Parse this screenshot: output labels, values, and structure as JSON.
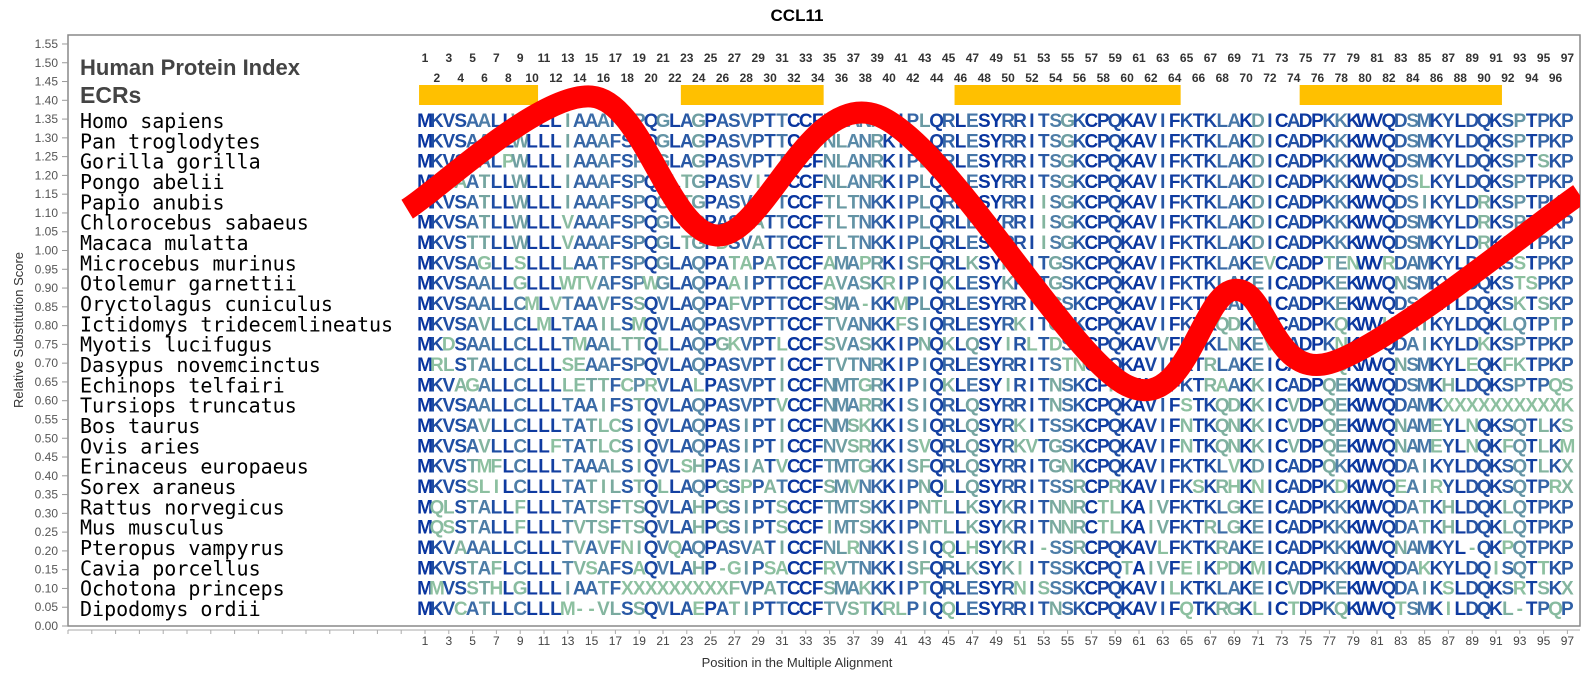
{
  "chart_data": {
    "type": "line",
    "title": "CCL11",
    "xlabel": "Position in the Multiple Alignment",
    "ylabel": "Relative Substitution Score",
    "ylim": [
      0,
      1.55
    ],
    "y_ticks": [
      "0.00",
      "0.05",
      "0.10",
      "0.15",
      "0.20",
      "0.25",
      "0.30",
      "0.35",
      "0.40",
      "0.45",
      "0.50",
      "0.55",
      "0.60",
      "0.65",
      "0.70",
      "0.75",
      "0.80",
      "0.85",
      "0.90",
      "0.95",
      "1.00",
      "1.05",
      "1.10",
      "1.15",
      "1.20",
      "1.25",
      "1.30",
      "1.35",
      "1.40",
      "1.45",
      "1.50",
      "1.55"
    ],
    "x_range": [
      1,
      97
    ],
    "x_tick_step": 2,
    "grid": false,
    "track_labels": {
      "index": "Human Protein Index",
      "ecrs": "ECRs"
    },
    "ecrs": [
      [
        1,
        10
      ],
      [
        23,
        34
      ],
      [
        46,
        64
      ],
      [
        75,
        91
      ]
    ],
    "series": [
      {
        "name": "Relative Substitution Score",
        "color": "#ff0000",
        "points": [
          [
            -0.5,
            1.11
          ],
          [
            15,
            1.41
          ],
          [
            25.5,
            1.04
          ],
          [
            39,
            1.36
          ],
          [
            60,
            0.64
          ],
          [
            69,
            0.895
          ],
          [
            77,
            0.7
          ],
          [
            98,
            1.15
          ]
        ]
      }
    ],
    "alignment": [
      {
        "species": "Homo sapiens",
        "seq": "MKVSAALLWLLLIAAAFSPQGLAGPASVPTTCCFNLANRKIPLQRLESYRRITSGKCPQKAVIFKTKLAKDICADPKKKWVQDSMKYLDQKSPTPKP"
      },
      {
        "species": "Pan troglodytes",
        "seq": "MKVSAALLWLLLIAAAFSPQGLAGPASVPTTCCFNLANRKIPLQRLESYRRITSGKCPQKAVIFKTKLAKDICADPKKKWVQDSMKYLDQKSPTPKP"
      },
      {
        "species": "Gorilla gorilla",
        "seq": "MKVSAALPWLLLIAAAFSPQGLAGPASVPTTCCFNLANRKIPLQRLESYRRITSGKCPQKAVIFKTKLAKDICADPKKKWVQDSMKYLDQKSPTSKP"
      },
      {
        "species": "Pongo abelii",
        "seq": "MKVAATLLWLLLIAAAFSPQGLTGPASVITTCCFNLANRKIPLQRLESYRRITSGKCPQKAVIFKTKLAKDICADPKKKWVQDSLKYLDQKSPTPKP"
      },
      {
        "species": "Papio anubis",
        "seq": "MKVSATLLWLLLIAAAFSPQGLTGPASVATTCCFTLTNKKIPLQRLESYRRIISGKCPQKAVIFKTKLAKDICADPKKKWVQDSIKYLDRKSPTPKP"
      },
      {
        "species": "Chlorocebus sabaeus",
        "seq": "MKVSATLLWLLLVAAAFSPQGLTGPASVATTCCFTLTNKKIPLQRLESYRRIISGKCPQKAVIFKTKLAKDICADPKKKWVQDSMKYLDRKSPTPKP"
      },
      {
        "species": "Macaca mulatta",
        "seq": "MKVSTTLLWLLLVAAAFSPQGLTGPDSVATTCCFTLTNKKIPLQRLESYRRIISGKCPQKAVIFKTKLAKDICADPKKKWVQDSMKYLDRKSPTPKP"
      },
      {
        "species": "Microcebus murinus",
        "seq": "MKVSAGLLSLLLLAATFSPQGLAQPATAPATCCFAMAPRKISFQRLKSYKRITGSKCPQKAVIFKTKLAKEVCADPTENWVRDAMKYLDQKSSTPKP"
      },
      {
        "species": "Otolemur garnettii",
        "seq": "MKVSAALLGLLLWTVAFSPWGLAQPAAIPTTCCFAVASKRIPIQKLESYKRVTGSKCPQKAVIFKTKLAKEICADPKEKWVQNSMKYLDQKSTSPKP"
      },
      {
        "species": "Oryctolagus cuniculus",
        "seq": "MKVSAALLCMLVTAAVFSSQVLAQPAFVPTTCCFSMA-KKMPLQRLESYRRISGSKCPQKAVIFKTKLAKEICADPKEKWVQDSIKYLDQKSKTSKP"
      },
      {
        "species": "Ictidomys tridecemlineatus",
        "seq": "MKVSAVLLCLMLTAAILSMQVLAQPASVPTTCCFTVANKKFSIQRLESYRKITGSKCPQKAVIFKTKQDKEFCADPKQKWVKDAIKYLDQKLQTPTP"
      },
      {
        "species": "Myotis lucifugus",
        "seq": "MKDSAALLCLLLTMAALTTQLLAQPGKVPTLCCFSVASKKIPNQKLQSYIRLTDSRCPQKAVVFKTKLNKEVCADPKNKWVQDAIKYLDKKSPTPKP"
      },
      {
        "species": "Dasypus novemcinctus",
        "seq": "MRLSTALLCLLLSEAAFSPQVLAQPASVPTICCFTVTNRKIPIQRLESYRRITSTNCPQKAVIFKTRLAKEICANPEQKWVQNSMKYLEQKFKTPKP"
      },
      {
        "species": "Echinops telfairi",
        "seq": "MKVAGALLCLLLLETTFCPRVLALPASVPTICCFNMTGRKIPIQKLESYIRITNSKCPRTAVVFKTRAAKKICADPQEKWVQDSMKHLDQKSPTPQS"
      },
      {
        "species": "Tursiops truncatus",
        "seq": "MKVSAALLCLLLTAAIFSTQVLAQPASVPTVCCFNMARRKISIQRLQSYRRITNSKCPQKAVIFSTKQDKKICVDPQEKWVQDAMKXXXXXXXXXXK"
      },
      {
        "species": "Bos taurus",
        "seq": "MKVSAVLLCLLLTATLCSIQVLAQPASIPTICCFNMSKKKISIQRLQSYRKITSSKCPQKAVIFNTKQNKKICVDPQEKWVQNAMEYLNQKSQTLKS"
      },
      {
        "species": "Ovis aries",
        "seq": "MKVSAVLLCLLFTATLCSIQVLAQPASIPTICCFNVSRKKISVQRLQSYRKVTGSKCPQKAVIFNTKQNKKICVDPQEKWVQNAMEYLNQKFQTLKM"
      },
      {
        "species": "Erinaceus europaeus",
        "seq": "MKVSTMFLCLLLTAAALSIQVLSHPASIATVCCFTMTGKKISFQRLQSYRRITGNKCPQKAVIFKTKLVKDICADPQKKWVQDAIKYLDQKSQTLKX"
      },
      {
        "species": "Sorex araneus",
        "seq": "MKVSSLILCLLLTATILSTQLLAQPGSPPATCCFSMVNKKIPNQLLQSYRRITSSRCPRKAVIFKSKRHKNICADPKDKWVQEAIRYLDQKSQTPRX"
      },
      {
        "species": "Rattus norvegicus",
        "seq": "MQLSTALLFLLLTATSFTSQVLAHPGSIPTSCCFTMTSKKIPNTLLKSYKRITNNRCTLKAIVFKTKLGKEICADPKKKWVQDATKHLDQKLQTPKP"
      },
      {
        "species": "Mus musculus",
        "seq": "MQSSTALLFLLLTVTSFTSQVLAHPGSIPTSCCFIMTSKKIPNTLLKSYKRITNNRCTLKAIVFKTRLGKEICADPKKKWVQDATKHLDQKLQTPKP"
      },
      {
        "species": "Pteropus vampyrus",
        "seq": "MKVAAALLCLLLTVAVFNIQVQAQPASVATICCFNLRNKKISIQQLHSYKRI-SSRCPQKAVLFKTKRAKEICADPKKKWVQNAMKYL-QKPQTPKP"
      },
      {
        "species": "Cavia porcellus",
        "seq": "MKVSTAFLCLLLTVSAFSAQVLAHP-GIPSACCFRVTNKKISFQRLKSYKIITSSKCPQTAIVFEIKPDKMICADPKKKWVQDAKKYLDQISQTTKP"
      },
      {
        "species": "Ochotona princeps",
        "seq": "MMVSSTHLGLLLIAATFXXXXXXXXXFVPATCCFSMAKKKIPTQRLESYRNISSSKCPQKAVILKTKLAKEICVDPKEKWVQDAIKSLDQKSRTSKX"
      },
      {
        "species": "Dipodomys ordii",
        "seq": "MKVCATLLCLLLM--VLSSQVLAEPATIPTTCCFTVSTKRLPIQQLESYRRITNSKCPQKAVIFQTKRGKLICTDPKQKWVQTSMKILDQKL-TPQP"
      }
    ]
  },
  "colors": {
    "ecr": "#ffc000",
    "conserved": "#08349f",
    "mid": "#2f5fa6",
    "variable": "#5888a8",
    "low": "#7aaa9f",
    "lowest": "#92c6a0",
    "frame": "#888888"
  }
}
